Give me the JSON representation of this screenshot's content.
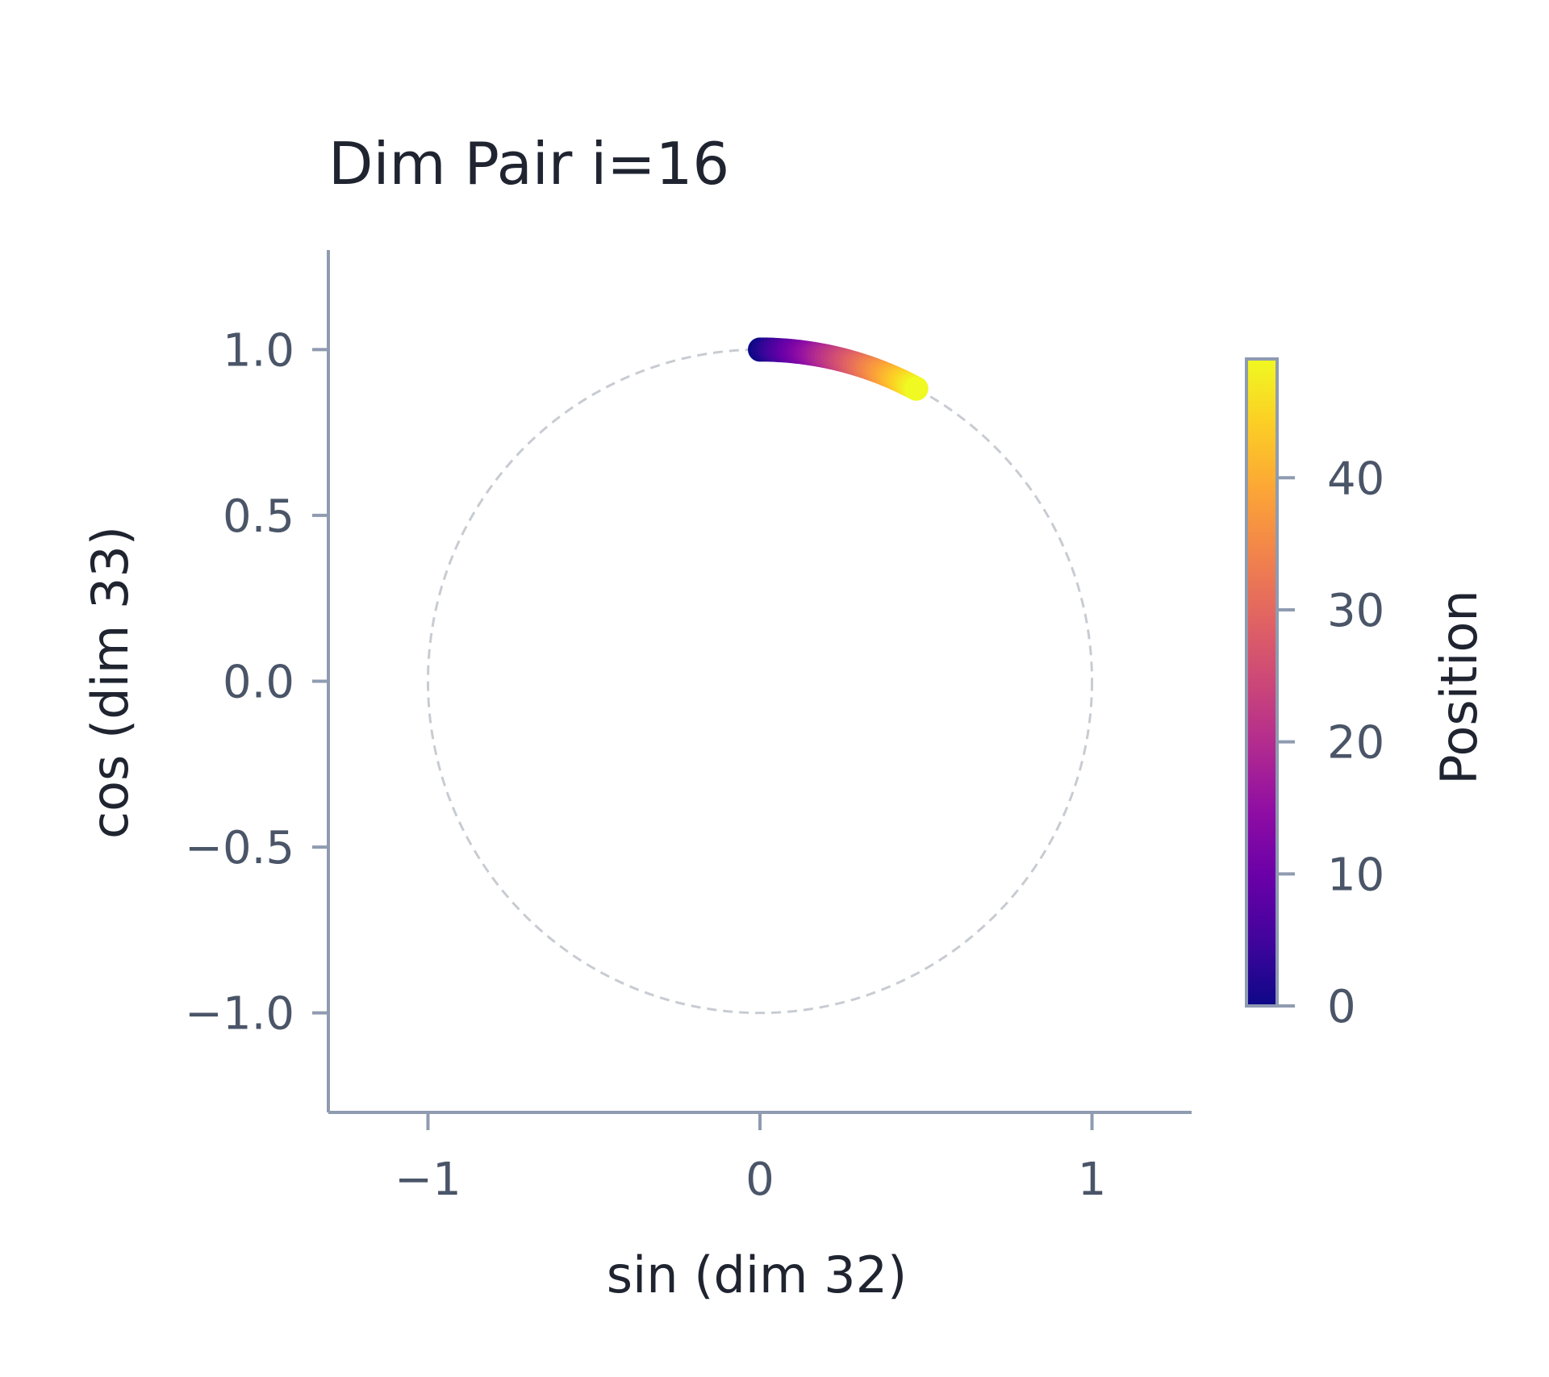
{
  "chart_data": {
    "type": "scatter",
    "title": "Dim Pair i=16",
    "xlabel": "sin (dim 32)",
    "ylabel": "cos (dim 33)",
    "xlim": [
      -1.3,
      1.3
    ],
    "ylim": [
      -1.3,
      1.3
    ],
    "xticks": [
      -1,
      0,
      1
    ],
    "xtick_labels": [
      "−1",
      "0",
      "1"
    ],
    "yticks": [
      1.0,
      0.5,
      0.0,
      -0.5,
      -1.0
    ],
    "ytick_labels": [
      "1.0",
      "0.5",
      "0.0",
      "−0.5",
      "−1.0"
    ],
    "grid": false,
    "reference_circle": {
      "radius": 1,
      "style": "dashed",
      "color": "#c8ccd2"
    },
    "colormap": "plasma",
    "colorbar": {
      "label": "Position",
      "range": [
        0,
        49
      ],
      "ticks": [
        0,
        10,
        20,
        30,
        40
      ],
      "tick_labels": [
        "0",
        "10",
        "20",
        "30",
        "40"
      ],
      "colors": [
        "#0d0887",
        "#41049d",
        "#6a00a8",
        "#8f0da4",
        "#b12a90",
        "#cc4778",
        "#e16462",
        "#f2844b",
        "#fca636",
        "#fcce25",
        "#f0f921"
      ]
    },
    "series": [
      {
        "positions": {
          "start": 0,
          "end": 49
        },
        "angle_per_position_rad": 0.01,
        "x_expression": "sin(position * angle)",
        "y_expression": "cos(position * angle)",
        "x_range": [
          0.0,
          0.47
        ],
        "y_range": [
          0.88,
          1.0
        ]
      }
    ]
  }
}
